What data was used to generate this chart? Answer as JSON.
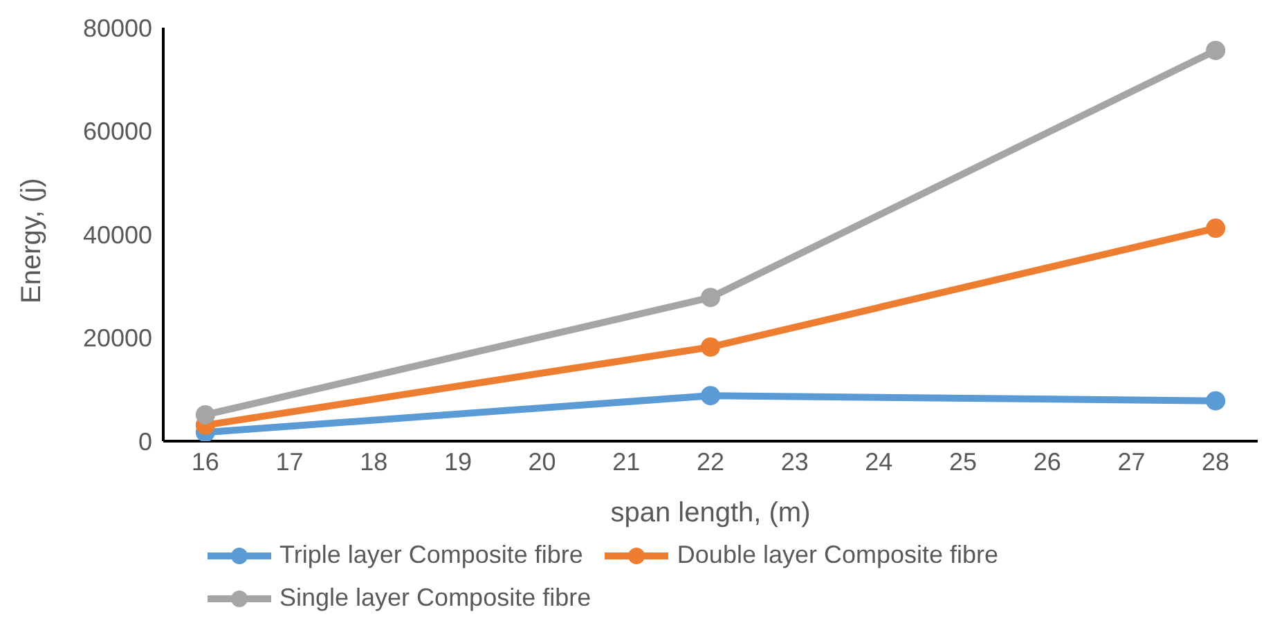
{
  "chart_data": {
    "type": "line",
    "xlabel": "span length, (m)",
    "ylabel": "Energy, (j)",
    "x": [
      16,
      22,
      28
    ],
    "series": [
      {
        "name": "Triple layer Composite fibre",
        "color": "#5b9bd5",
        "values": [
          1700,
          8800,
          7800
        ]
      },
      {
        "name": "Double layer Composite fibre",
        "color": "#ed7d31",
        "values": [
          3100,
          18200,
          41200
        ]
      },
      {
        "name": "Single layer Composite fibre",
        "color": "#a5a5a5",
        "values": [
          5100,
          27800,
          75600
        ]
      }
    ],
    "xlim": [
      15.5,
      28.5
    ],
    "xticks": [
      16,
      17,
      18,
      19,
      20,
      21,
      22,
      23,
      24,
      25,
      26,
      27,
      28
    ],
    "ylim": [
      0,
      80000
    ],
    "yticks": [
      0,
      20000,
      40000,
      60000,
      80000
    ],
    "grid": false,
    "legend": "bottom",
    "marker": "circle",
    "line_style": "solid"
  }
}
